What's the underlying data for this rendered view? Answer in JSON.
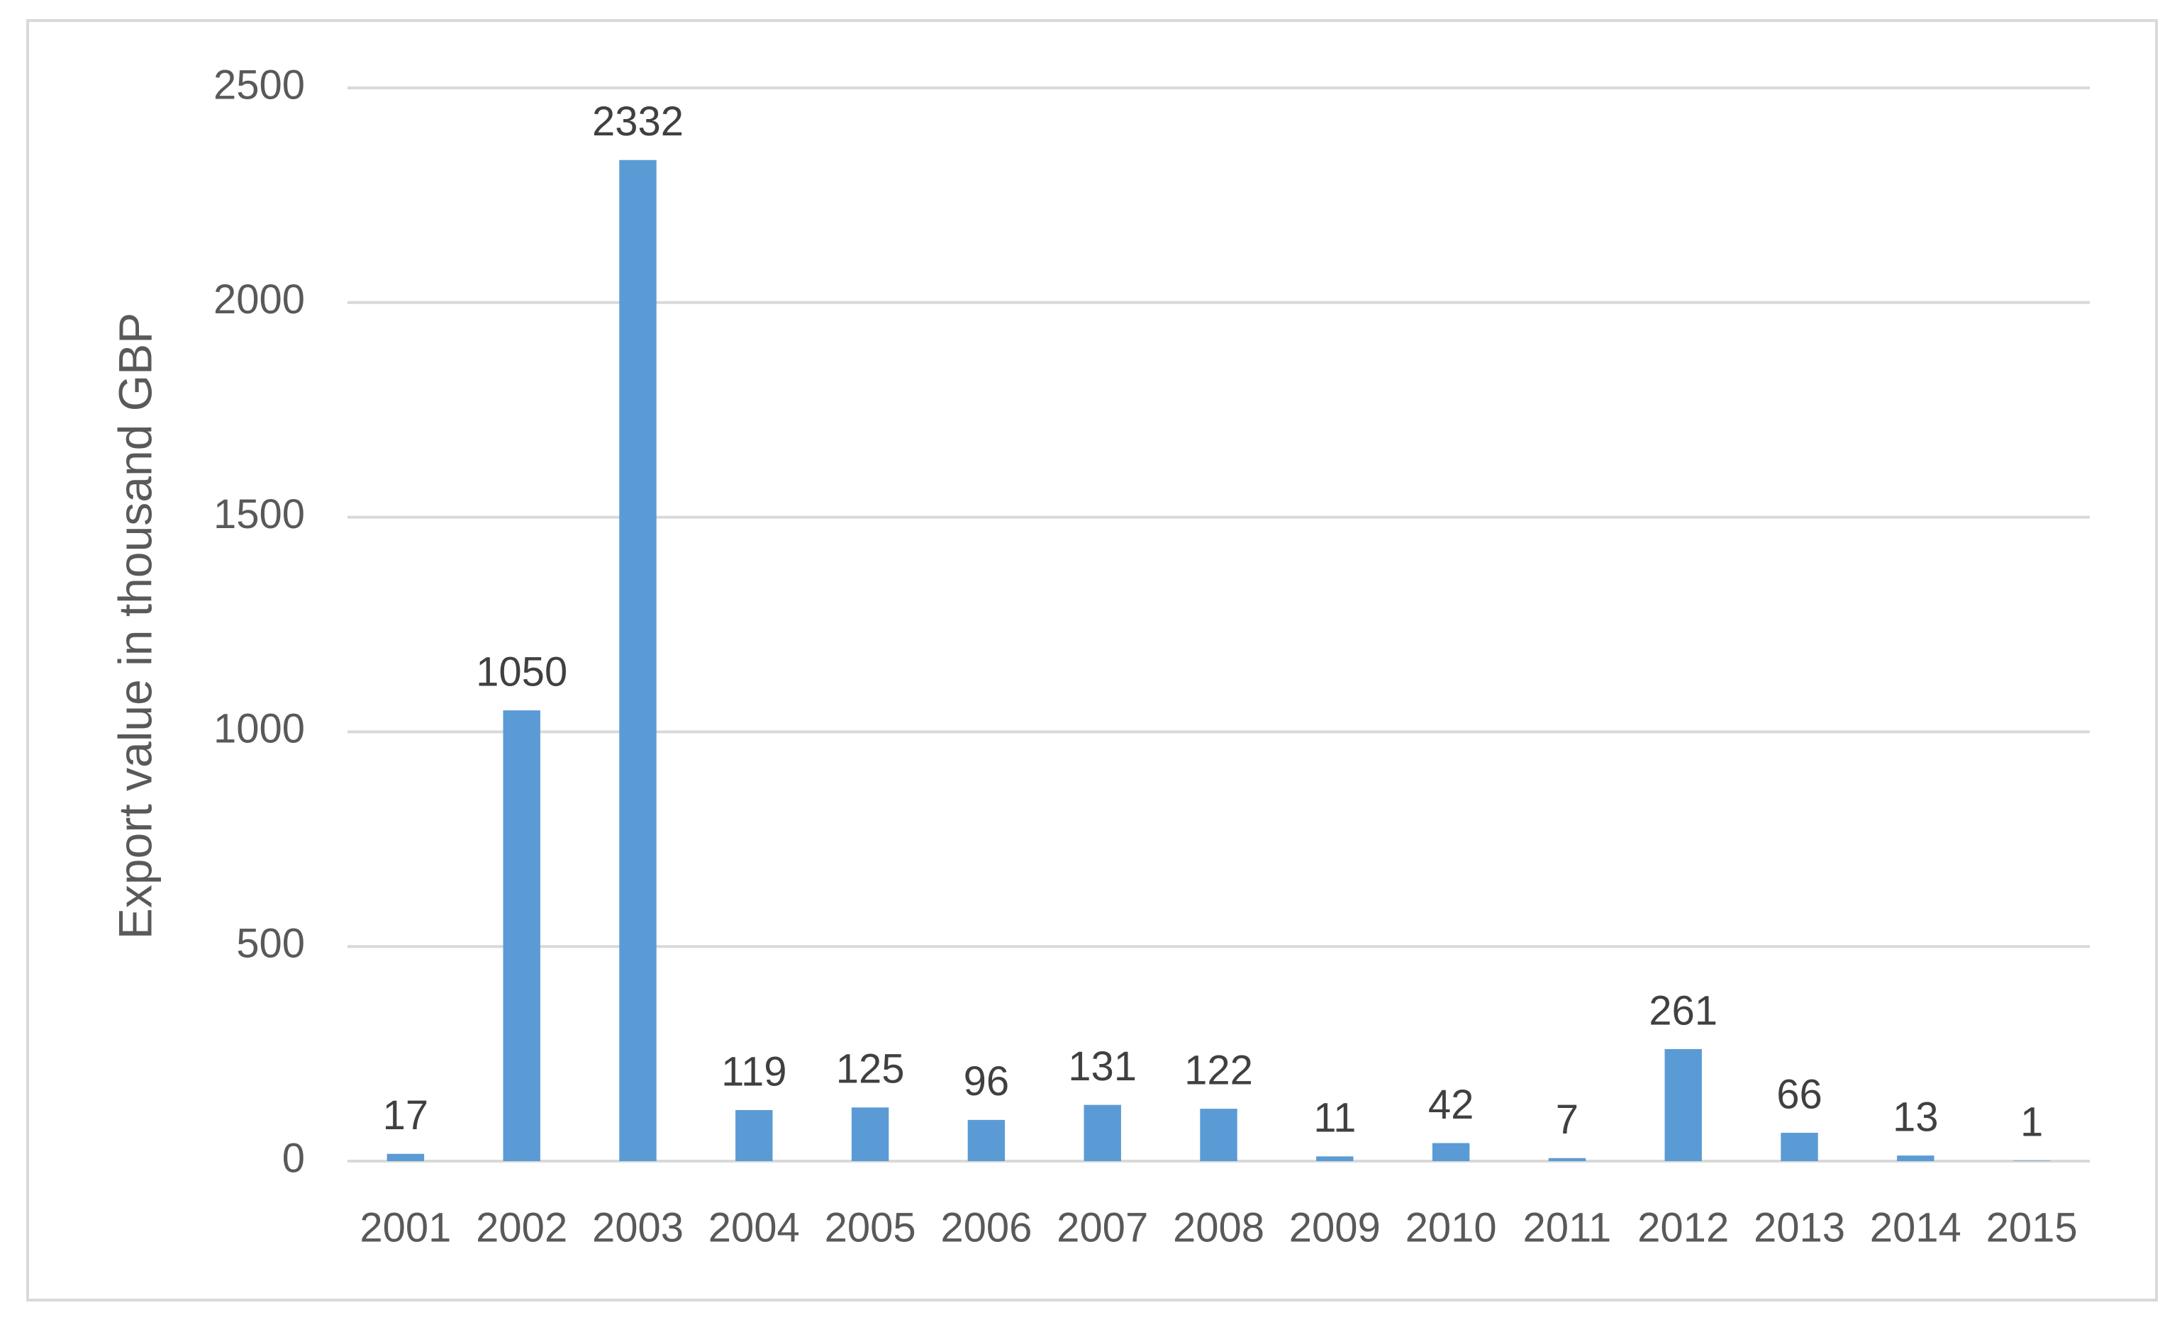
{
  "chart_data": {
    "type": "bar",
    "y_label": "Export value in thousand GBP",
    "categories": [
      "2001",
      "2002",
      "2003",
      "2004",
      "2005",
      "2006",
      "2007",
      "2008",
      "2009",
      "2010",
      "2011",
      "2012",
      "2013",
      "2014",
      "2015"
    ],
    "values": [
      17,
      1050,
      2332,
      119,
      125,
      96,
      131,
      122,
      11,
      42,
      7,
      261,
      66,
      13,
      1
    ],
    "color": "#5b9bd5",
    "ylim": [
      0,
      2500
    ],
    "yticks": [
      0,
      500,
      1000,
      1500,
      2000,
      2500
    ],
    "grid": true
  }
}
